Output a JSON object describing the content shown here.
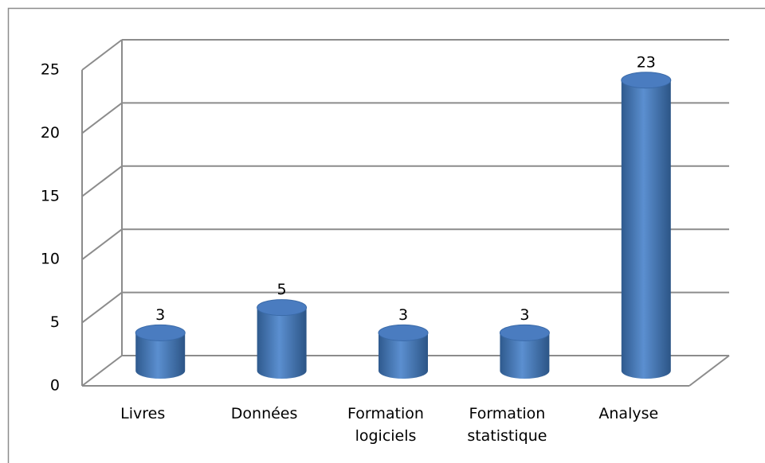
{
  "chart_data": {
    "type": "bar",
    "categories": [
      "Livres",
      "Données",
      "Formation logiciels",
      "Formation statistique",
      "Analyse"
    ],
    "values": [
      3,
      5,
      3,
      3,
      23
    ],
    "color": "#4f81bd",
    "ylim": [
      0,
      25
    ],
    "yticks": [
      0,
      5,
      10,
      15,
      20,
      25
    ],
    "grid": true
  }
}
